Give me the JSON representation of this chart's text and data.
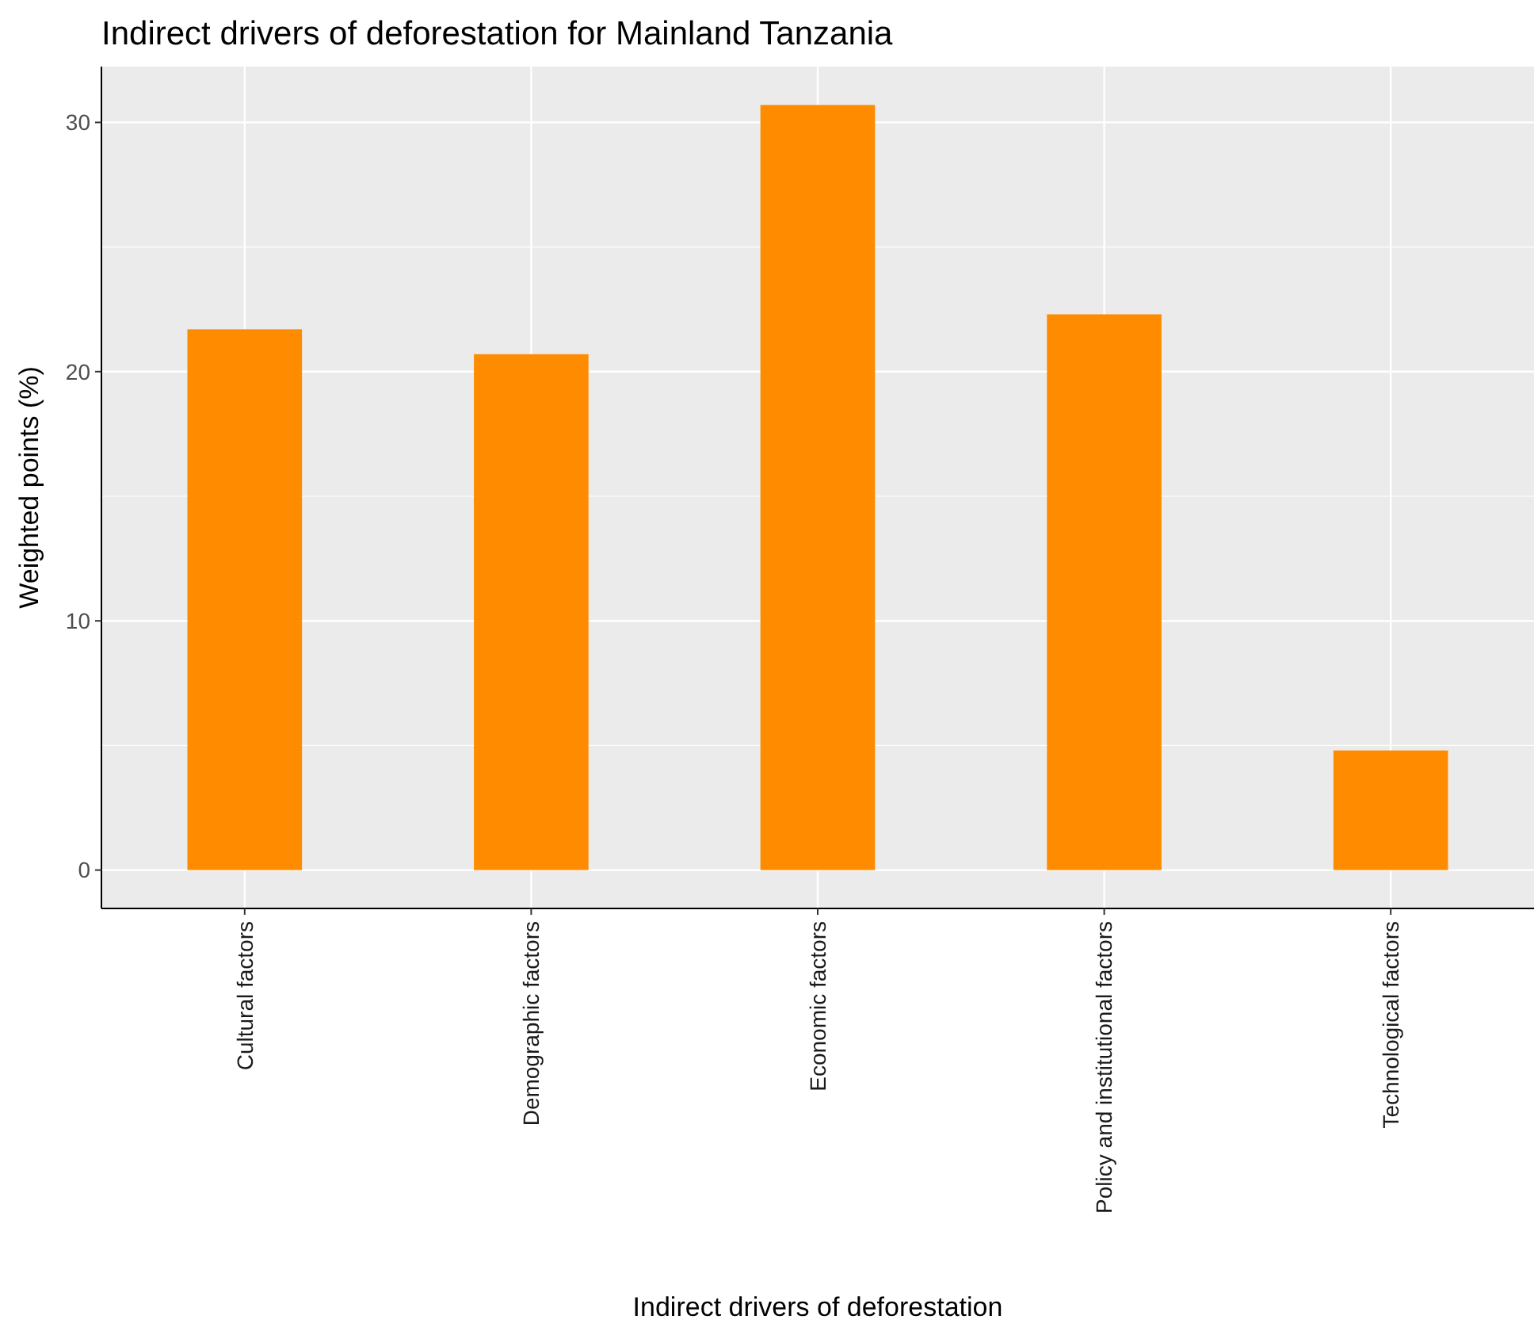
{
  "chart_data": {
    "type": "bar",
    "title": "Indirect drivers of deforestation for Mainland Tanzania",
    "xlabel": "Indirect drivers of deforestation",
    "ylabel": "Weighted points (%)",
    "categories": [
      "Cultural factors",
      "Demographic factors",
      "Economic factors",
      "Policy and institutional factors",
      "Technological factors"
    ],
    "values": [
      21.7,
      20.7,
      30.7,
      22.3,
      4.8
    ],
    "color": "#ff8c00",
    "ylim": [
      -1.54,
      32.24
    ],
    "yticks": [
      0,
      {
        "value": 5,
        "label": null
      },
      10,
      {
        "value": 15,
        "label": null
      },
      20,
      {
        "value": 25,
        "label": null
      },
      30
    ],
    "grid": true
  }
}
